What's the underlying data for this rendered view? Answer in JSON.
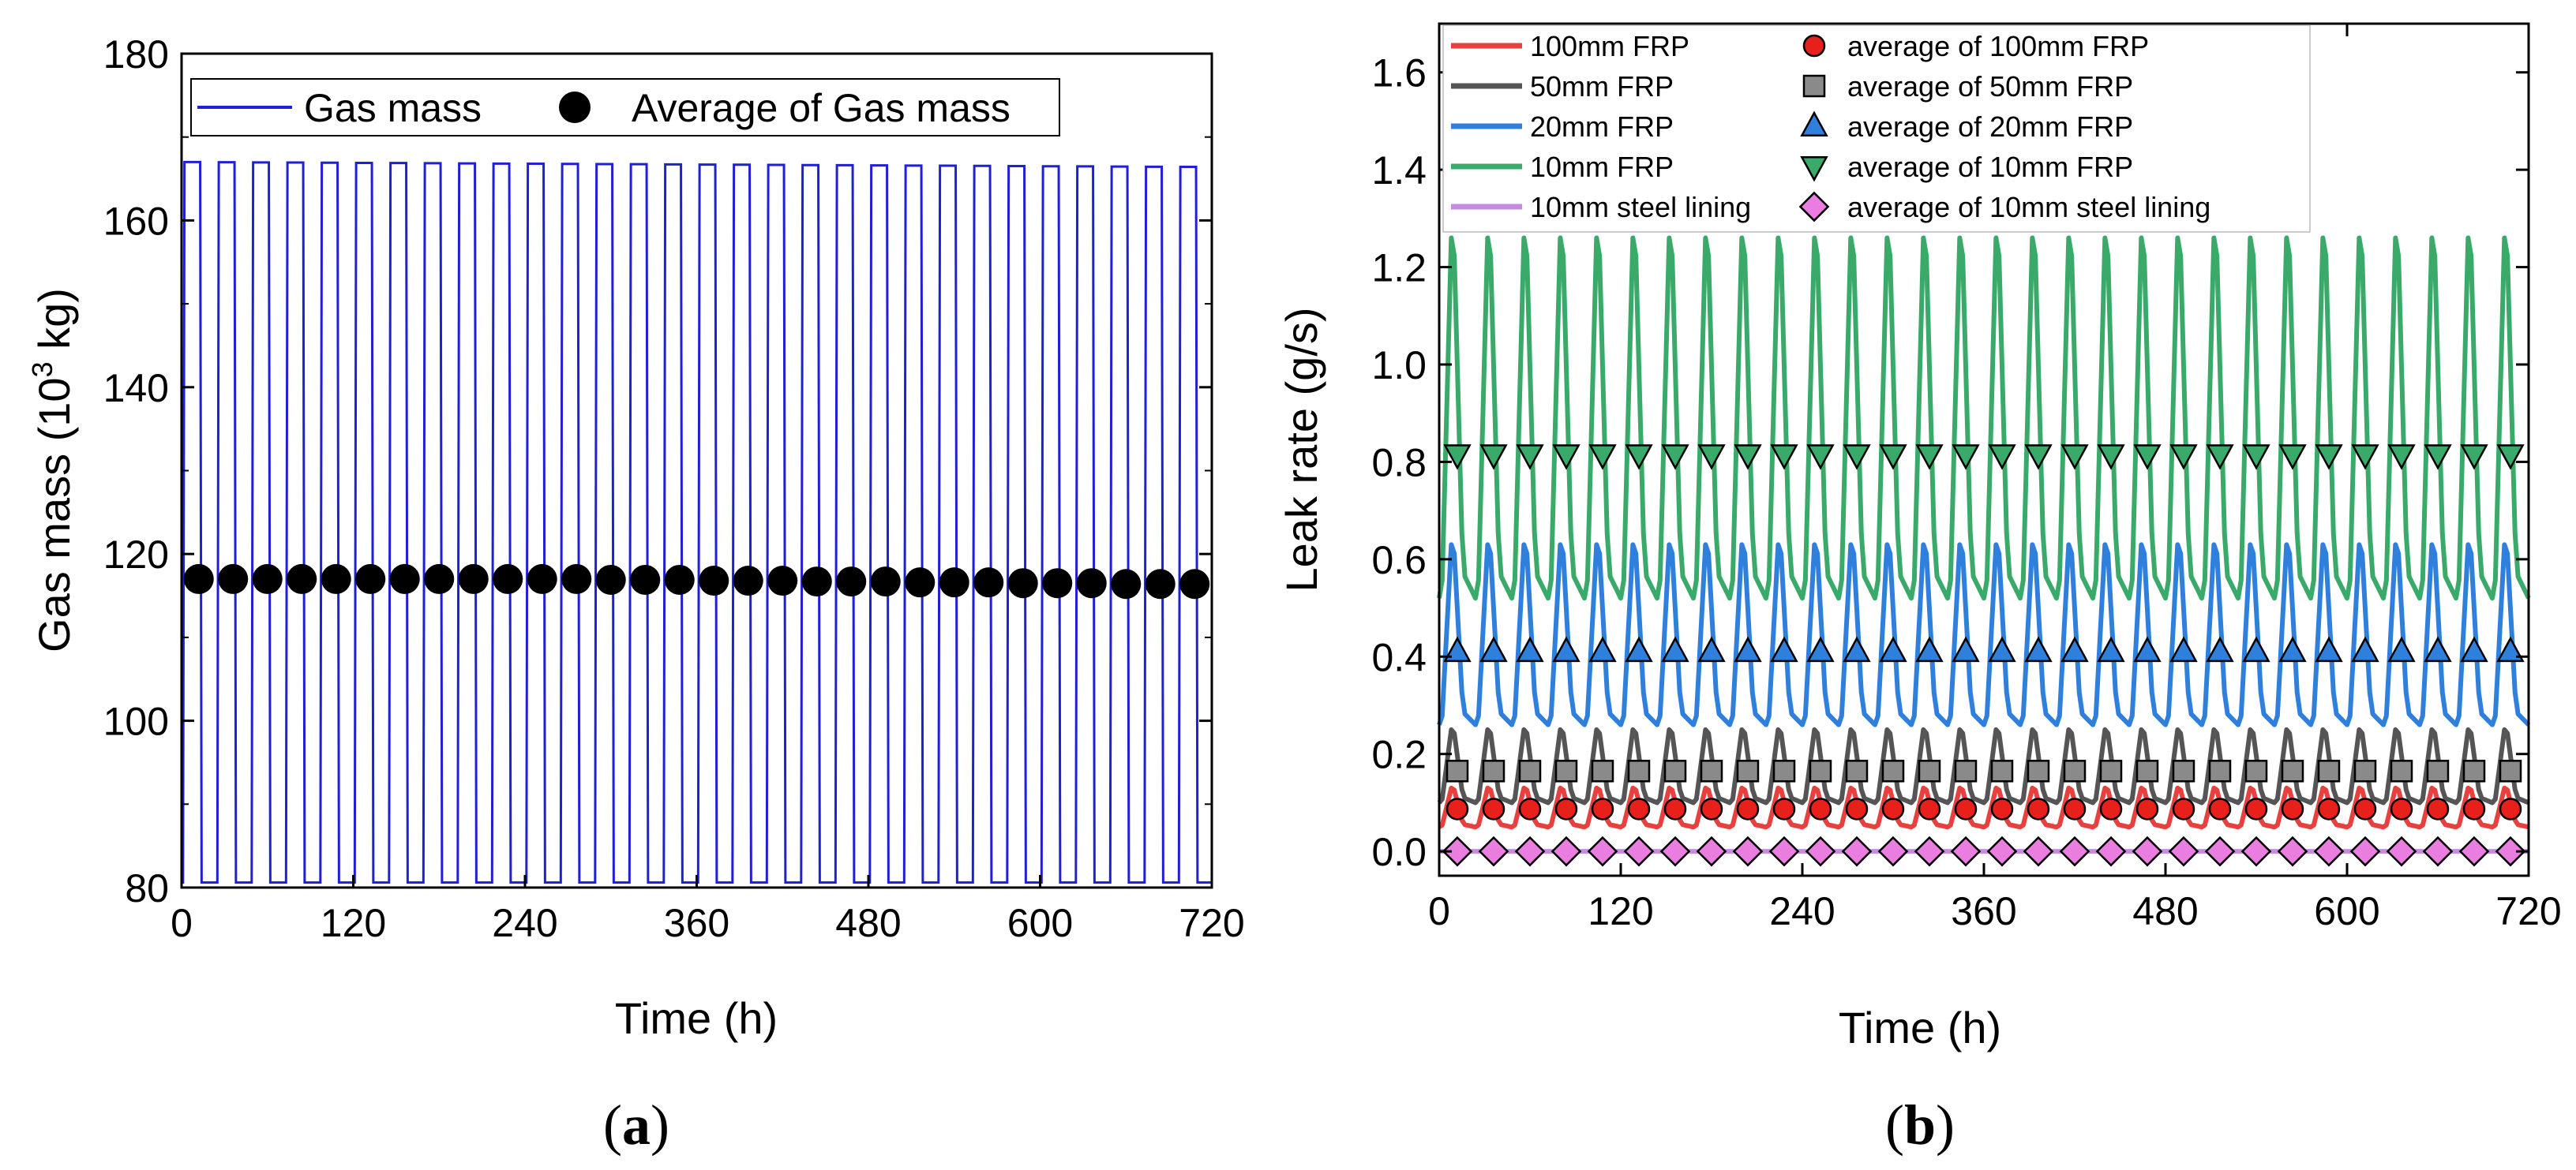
{
  "chart_data": [
    {
      "panel_label": "(a)",
      "type": "line",
      "xlabel": "Time (h)",
      "ylabel_main": "Gas mass (10",
      "ylabel_sup": "3",
      "ylabel_tail": " kg)",
      "xlim": [
        0,
        720
      ],
      "ylim": [
        80,
        180
      ],
      "xticks": [
        0,
        120,
        240,
        360,
        480,
        600,
        720
      ],
      "yticks": [
        80,
        100,
        120,
        140,
        160,
        180
      ],
      "period_h": 24,
      "series": [
        {
          "name": "Gas mass",
          "color": "#1f1fd6",
          "high": 167,
          "low": 80.6,
          "high_start_h": 2,
          "high_end_h": 13
        },
        {
          "name": "Average of Gas mass",
          "color": "#000000",
          "marker": "circle",
          "x": [
            12,
            36,
            60,
            84,
            108,
            132,
            156,
            180,
            204,
            228,
            252,
            276,
            300,
            324,
            348,
            372,
            396,
            420,
            444,
            468,
            492,
            516,
            540,
            564,
            588,
            612,
            636,
            660,
            684,
            708
          ],
          "y": [
            117,
            117,
            117,
            117,
            117,
            117,
            117,
            117,
            117,
            117,
            117,
            117,
            116.9,
            116.9,
            116.9,
            116.8,
            116.8,
            116.8,
            116.7,
            116.7,
            116.7,
            116.6,
            116.6,
            116.6,
            116.5,
            116.5,
            116.5,
            116.4,
            116.4,
            116.4
          ]
        }
      ]
    },
    {
      "panel_label": "(b)",
      "type": "line",
      "xlabel": "Time (h)",
      "ylabel": "Leak rate (g/s)",
      "xlim": [
        0,
        720
      ],
      "ylim": [
        -0.05,
        1.7
      ],
      "xticks": [
        0,
        120,
        240,
        360,
        480,
        600,
        720
      ],
      "yticks": [
        0.0,
        0.2,
        0.4,
        0.6,
        0.8,
        1.0,
        1.2,
        1.4,
        1.6
      ],
      "period_h": 24,
      "series": [
        {
          "name": "100mm FRP",
          "color": "#e8403f",
          "min": 0.05,
          "max": 0.13,
          "avg_name": "average of 100mm FRP",
          "avg_marker": "circle",
          "avg_color": "#e8201c",
          "avg": 0.087
        },
        {
          "name": "50mm FRP",
          "color": "#555555",
          "min": 0.1,
          "max": 0.25,
          "avg_name": "average of 50mm FRP",
          "avg_marker": "square",
          "avg_color": "#8a8a8a",
          "avg": 0.165
        },
        {
          "name": "20mm FRP",
          "color": "#2f7fdc",
          "min": 0.26,
          "max": 0.63,
          "avg_name": "average of 20mm FRP",
          "avg_marker": "triangle-up",
          "avg_color": "#2f7fdc",
          "avg": 0.41
        },
        {
          "name": "10mm FRP",
          "color": "#3aaa6b",
          "min": 0.52,
          "max": 1.26,
          "avg_name": "average of 10mm FRP",
          "avg_marker": "triangle-down",
          "avg_color": "#3aaa6b",
          "avg": 0.815
        },
        {
          "name": "10mm steel lining",
          "color": "#c58be0",
          "min": 0.0,
          "max": 0.0,
          "avg_name": "average of 10mm steel lining",
          "avg_marker": "diamond",
          "avg_color": "#e97ee0",
          "avg": 0.0
        }
      ],
      "avg_x": [
        12,
        36,
        60,
        84,
        108,
        132,
        156,
        180,
        204,
        228,
        252,
        276,
        300,
        324,
        348,
        372,
        396,
        420,
        444,
        468,
        492,
        516,
        540,
        564,
        588,
        612,
        636,
        660,
        684,
        708
      ]
    }
  ]
}
